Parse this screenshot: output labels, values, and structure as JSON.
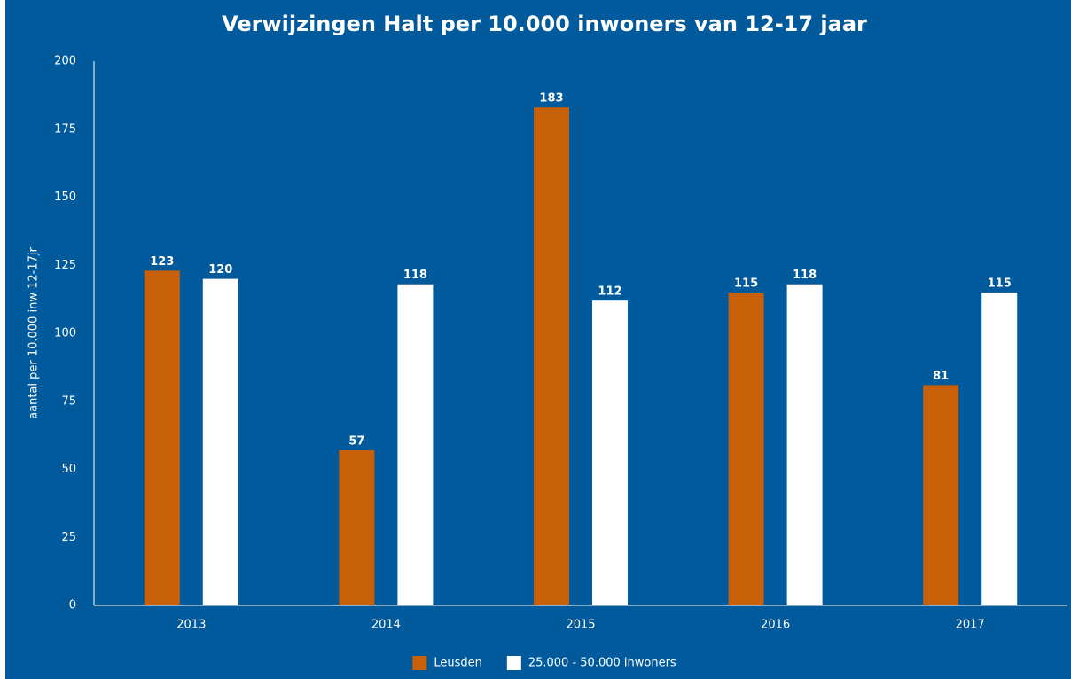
{
  "chart_data": {
    "type": "bar",
    "title": "Verwijzingen Halt per 10.000 inwoners van 12-17 jaar",
    "y_label": "aantal per 10.000 inw 12-17jr",
    "categories": [
      "2013",
      "2014",
      "2015",
      "2016",
      "2017"
    ],
    "series": [
      {
        "name": "Leusden",
        "color": "#c8600a",
        "values": [
          123,
          57,
          183,
          115,
          81
        ]
      },
      {
        "name": "25.000 - 50.000 inwoners",
        "color": "#ffffff",
        "values": [
          120,
          118,
          112,
          118,
          115
        ]
      }
    ],
    "ylim": [
      0,
      200
    ],
    "yticks": [
      0,
      25,
      50,
      75,
      100,
      125,
      150,
      175,
      200
    ],
    "grid": false,
    "legend": "bottom"
  }
}
